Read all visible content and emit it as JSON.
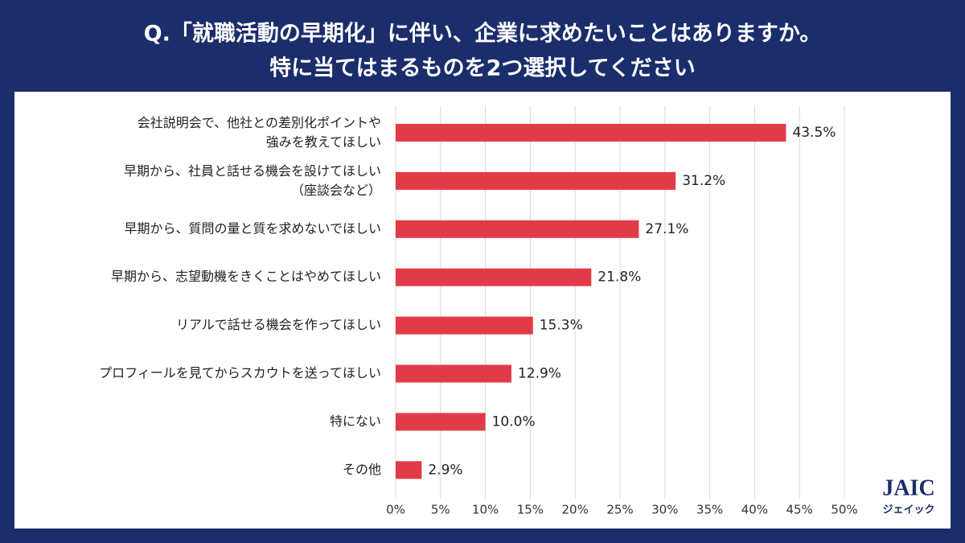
{
  "chart_data": {
    "type": "hbar",
    "title": "Q.「就職活動の早期化」に伴い、企業に求めたいことはありますか。",
    "subtitle": "特に当てはまるものを2つ選択してください",
    "categories": [
      "会社説明会で、他社との差別化ポイントや\n強みを教えてほしい",
      "早期から、社員と話せる機会を設けてほしい\n（座談会など）",
      "早期から、質問の量と質を求めないでほしい",
      "早期から、志望動機をきくことはやめてほしい",
      "リアルで話せる機会を作ってほしい",
      "プロフィールを見てからスカウトを送ってほしい",
      "特にない",
      "その他"
    ],
    "values": [
      43.5,
      31.2,
      27.1,
      21.8,
      15.3,
      12.9,
      10.0,
      2.9
    ],
    "value_labels": [
      "43.5%",
      "31.2%",
      "27.1%",
      "21.8%",
      "15.3%",
      "12.9%",
      "10.0%",
      "2.9%"
    ],
    "color": "#e23b48",
    "xlim": [
      0,
      50
    ],
    "xticks": [
      {
        "value": 0,
        "label": "0%"
      },
      {
        "value": 5,
        "label": "5%"
      },
      {
        "value": 10,
        "label": "10%"
      },
      {
        "value": 15,
        "label": "15%"
      },
      {
        "value": 20,
        "label": "20%"
      },
      {
        "value": 25,
        "label": "25%"
      },
      {
        "value": 30,
        "label": "30%"
      },
      {
        "value": 35,
        "label": "35%"
      },
      {
        "value": 40,
        "label": "40%"
      },
      {
        "value": 45,
        "label": "45%"
      },
      {
        "value": 50,
        "label": "50%"
      }
    ],
    "grid": true
  },
  "logo": {
    "name": "JAIC",
    "kana": "ジェイック"
  }
}
